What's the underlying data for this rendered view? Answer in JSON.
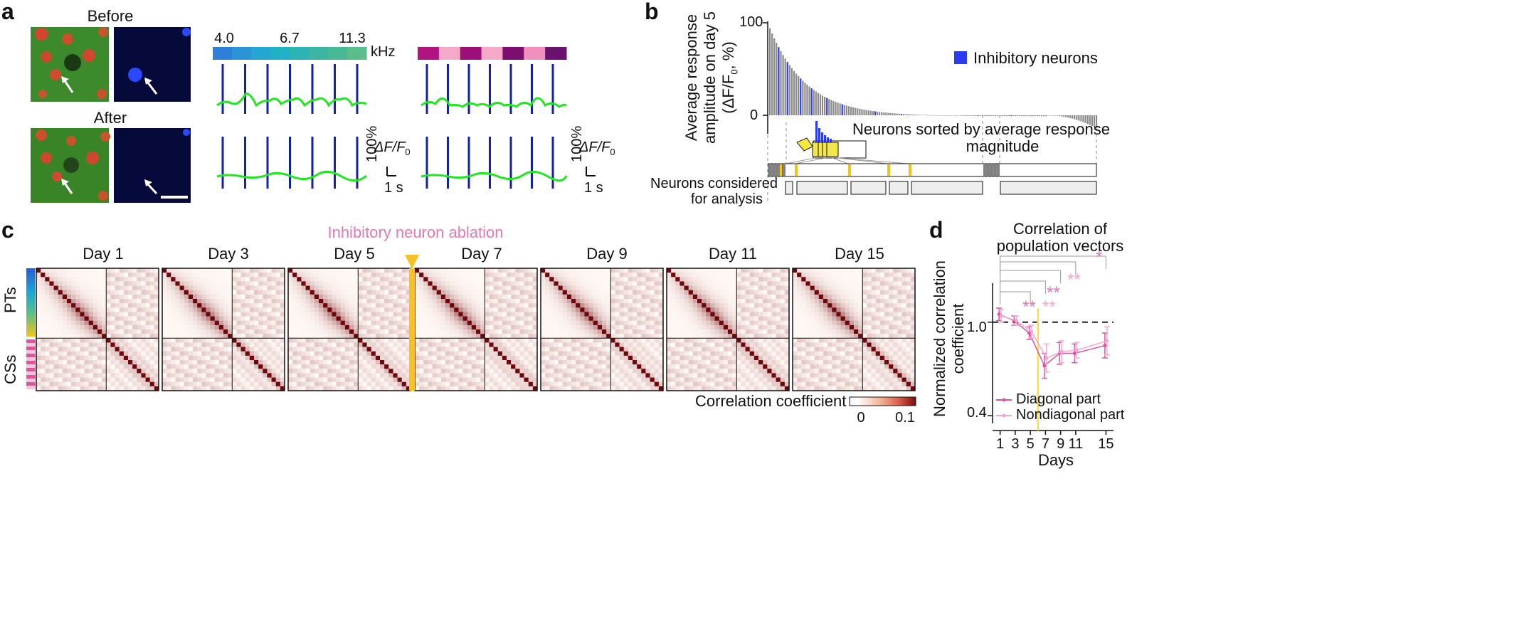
{
  "panels": {
    "a": {
      "letter": "a",
      "before_label": "Before",
      "after_label": "After",
      "freq_ticks": [
        "4.0",
        "6.7",
        "11.3"
      ],
      "freq_unit": "kHz",
      "scale_dff_label": "ΔF/F",
      "scale_dff_sub": "0",
      "scale_pct": "100%",
      "scale_time": "1 s",
      "tone_colors": [
        "#2e7fd8",
        "#2a94d6",
        "#23a6cf",
        "#22b0c6",
        "#2cb3b5",
        "#3cb5a2",
        "#4bb895",
        "#5bbd8b"
      ],
      "cs_colors": [
        "#b0147e",
        "#f6a8c8",
        "#9a0f78",
        "#f6a8c8",
        "#7a0f70",
        "#f090bc",
        "#6b1270"
      ]
    },
    "b": {
      "letter": "b",
      "ylabel_line1": "Average response",
      "ylabel_line2": "amplitude on day 5",
      "ylabel_line3": "(ΔF/F",
      "ylabel_line3_sub": "0",
      "ylabel_line3_end": ", %)",
      "y_ticks": [
        "100",
        "0"
      ],
      "legend": "Inhibitory neurons",
      "legend_color": "#2b3cf0",
      "annotation_line1": "Neurons sorted by average response",
      "annotation_line2": "magnitude",
      "considered_line1": "Neurons considered",
      "considered_line2": "for analysis"
    },
    "c": {
      "letter": "c",
      "ablation_label": "Inhibitory neuron ablation",
      "days": [
        "Day 1",
        "Day 3",
        "Day 5",
        "Day 7",
        "Day 9",
        "Day 11",
        "Day 15"
      ],
      "row_label_pt": "PTs",
      "row_label_cs": "CSs",
      "colorbar_label": "Correlation coefficient",
      "colorbar_ticks": [
        "0",
        "0.1"
      ]
    },
    "d": {
      "letter": "d",
      "title_line1": "Correlation of",
      "title_line2": "population vectors",
      "ylabel_line1": "Normalized correlation",
      "ylabel_line2": "coefficient",
      "xlabel": "Days",
      "legend_diag": "Diagonal part",
      "legend_nondiag": "Nondiagonal part",
      "sig_1": "**",
      "sig_2": "**",
      "sig_3": "**",
      "sig_4": "**",
      "sig_5": "*"
    }
  },
  "chart_data": [
    {
      "type": "line",
      "title": "Correlation of population vectors",
      "xlabel": "Days",
      "ylabel": "Normalized correlation coefficient",
      "x": [
        1,
        3,
        5,
        7,
        9,
        11,
        15
      ],
      "x_ticks": [
        "1",
        "3",
        "5",
        "7",
        "9",
        "11",
        "15"
      ],
      "y_ticks": [
        "0.4",
        "1.0"
      ],
      "ylim": [
        0.35,
        1.25
      ],
      "ablation_day": 6,
      "reference_line": 1.0,
      "series": [
        {
          "name": "Diagonal part",
          "values": [
            1.05,
            1.01,
            0.93,
            0.72,
            0.8,
            0.8,
            0.85
          ],
          "errors": [
            0.04,
            0.03,
            0.04,
            0.08,
            0.07,
            0.06,
            0.08
          ]
        },
        {
          "name": "Nondiagonal part",
          "values": [
            1.04,
            1.01,
            0.94,
            0.77,
            0.81,
            0.82,
            0.88
          ],
          "errors": [
            0.04,
            0.03,
            0.04,
            0.09,
            0.07,
            0.05,
            0.09
          ]
        }
      ]
    },
    {
      "type": "bar",
      "title": "Average response amplitude on day 5",
      "ylabel": "Average response amplitude on day 5 (ΔF/F0, %)",
      "y_ticks": [
        "100",
        "0"
      ],
      "ylim": [
        -15,
        100
      ],
      "sorted_descending": true
    },
    {
      "type": "heatmap",
      "title": "Correlation coefficient matrices",
      "panels": [
        "Day 1",
        "Day 3",
        "Day 5",
        "Day 7",
        "Day 9",
        "Day 11",
        "Day 15"
      ],
      "colorbar_range": [
        0,
        0.1
      ],
      "colorbar_ticks": [
        "0",
        "0.1"
      ]
    }
  ]
}
